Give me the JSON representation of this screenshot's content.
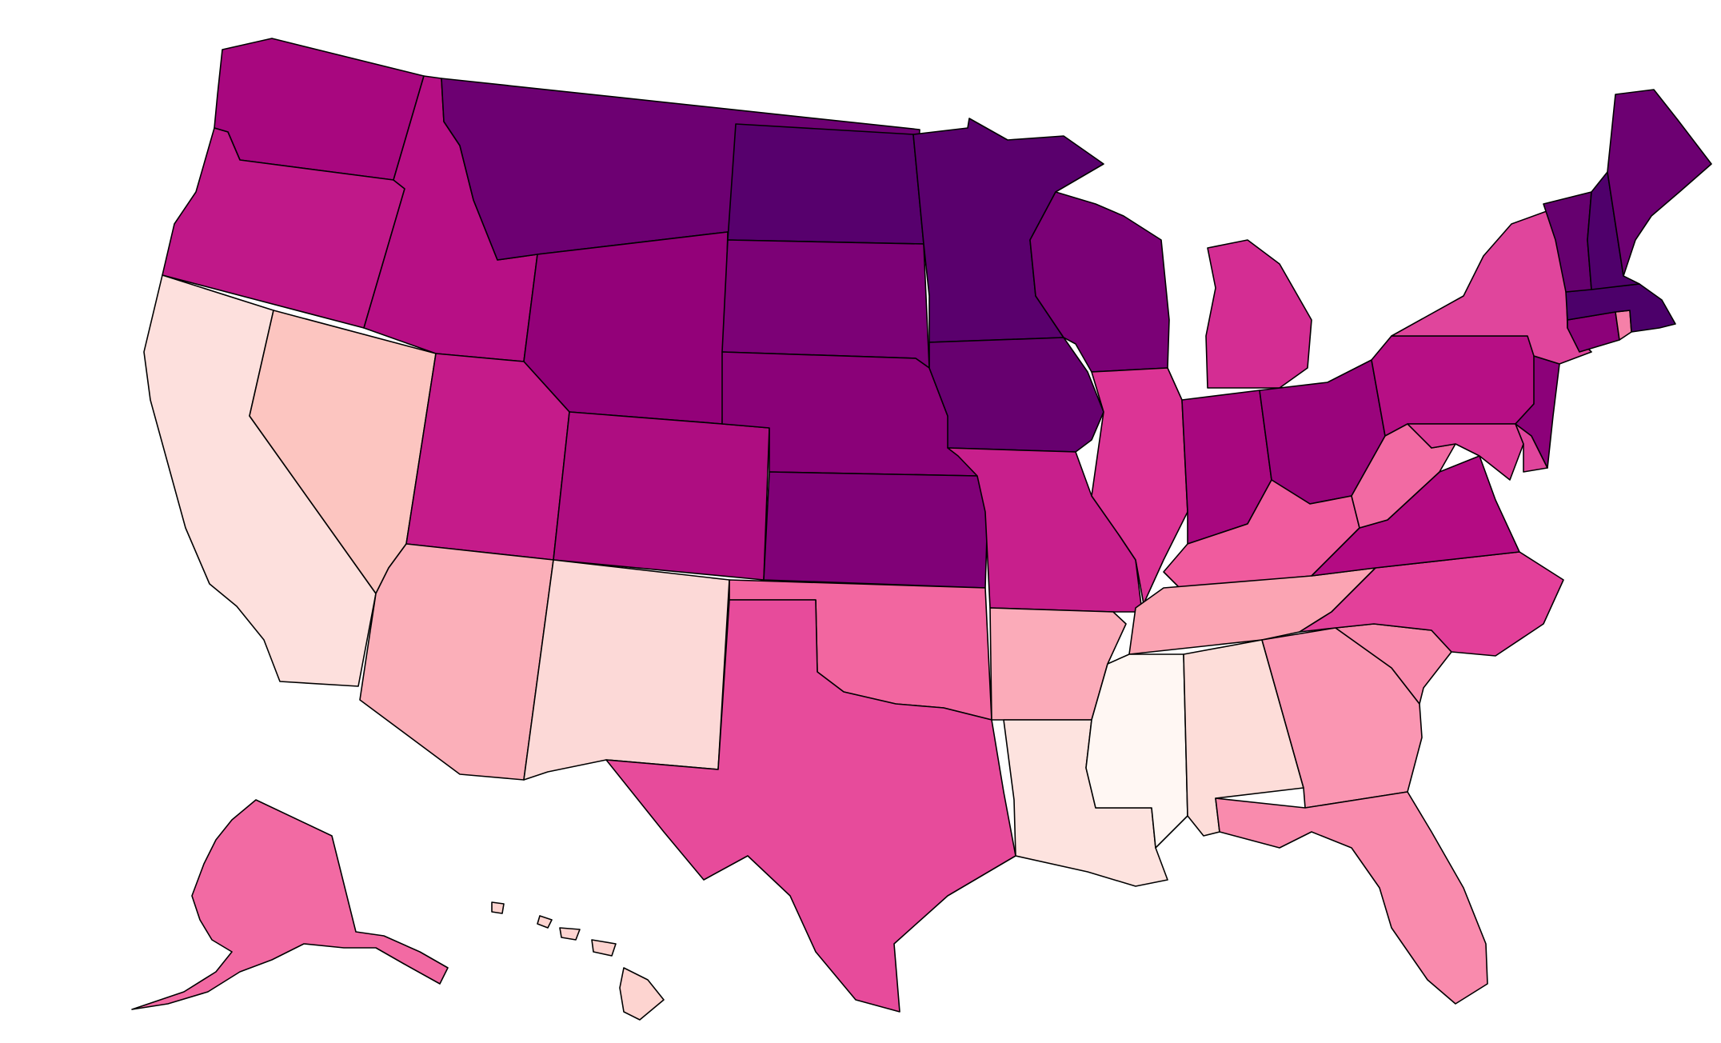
{
  "map": {
    "type": "choropleth",
    "region": "United States",
    "title": "",
    "legend": null,
    "color_scale": [
      "#fff7f3",
      "#fde0dd",
      "#fcc5c0",
      "#fa9fb5",
      "#f768a1",
      "#dd3497",
      "#ae017e",
      "#7a0177",
      "#49006a"
    ],
    "states": [
      {
        "code": "WA",
        "fill": "#a8077f"
      },
      {
        "code": "OR",
        "fill": "#c01889"
      },
      {
        "code": "CA",
        "fill": "#fde0dd"
      },
      {
        "code": "NV",
        "fill": "#fcc5c0"
      },
      {
        "code": "ID",
        "fill": "#b70f85"
      },
      {
        "code": "MT",
        "fill": "#6d0072"
      },
      {
        "code": "WY",
        "fill": "#930179"
      },
      {
        "code": "UT",
        "fill": "#c51b8a"
      },
      {
        "code": "AZ",
        "fill": "#fbafb9"
      },
      {
        "code": "CO",
        "fill": "#ae0d81"
      },
      {
        "code": "NM",
        "fill": "#fcd9d7"
      },
      {
        "code": "ND",
        "fill": "#57006d"
      },
      {
        "code": "SD",
        "fill": "#7c0176"
      },
      {
        "code": "NE",
        "fill": "#8a0178"
      },
      {
        "code": "KS",
        "fill": "#800177"
      },
      {
        "code": "OK",
        "fill": "#f266a0"
      },
      {
        "code": "TX",
        "fill": "#e74b9b"
      },
      {
        "code": "MN",
        "fill": "#5a006d"
      },
      {
        "code": "IA",
        "fill": "#67006f"
      },
      {
        "code": "MO",
        "fill": "#c81f8c"
      },
      {
        "code": "AR",
        "fill": "#fbabb9"
      },
      {
        "code": "LA",
        "fill": "#fde3df"
      },
      {
        "code": "WI",
        "fill": "#7b0176"
      },
      {
        "code": "IL",
        "fill": "#dc3495"
      },
      {
        "code": "MI",
        "fill": "#d42d93"
      },
      {
        "code": "IN",
        "fill": "#a8077f"
      },
      {
        "code": "OH",
        "fill": "#9a047c"
      },
      {
        "code": "KY",
        "fill": "#f05b9e"
      },
      {
        "code": "TN",
        "fill": "#fba4b3"
      },
      {
        "code": "MS",
        "fill": "#fff7f3"
      },
      {
        "code": "AL",
        "fill": "#fdddd9"
      },
      {
        "code": "GA",
        "fill": "#fa96b2"
      },
      {
        "code": "FL",
        "fill": "#f98bad"
      },
      {
        "code": "SC",
        "fill": "#f98bad"
      },
      {
        "code": "NC",
        "fill": "#e3409a"
      },
      {
        "code": "VA",
        "fill": "#b40b83"
      },
      {
        "code": "WV",
        "fill": "#f26aa3"
      },
      {
        "code": "PA",
        "fill": "#b70f85"
      },
      {
        "code": "NY",
        "fill": "#e0459c"
      },
      {
        "code": "MD",
        "fill": "#de3c98"
      },
      {
        "code": "DE",
        "fill": "#e0459c"
      },
      {
        "code": "NJ",
        "fill": "#8c0179"
      },
      {
        "code": "CT",
        "fill": "#8c0179"
      },
      {
        "code": "RI",
        "fill": "#f580a8"
      },
      {
        "code": "MA",
        "fill": "#4c006a"
      },
      {
        "code": "VT",
        "fill": "#66006f"
      },
      {
        "code": "NH",
        "fill": "#4f006b"
      },
      {
        "code": "ME",
        "fill": "#6d0072"
      },
      {
        "code": "AK",
        "fill": "#f26aa3"
      },
      {
        "code": "HI",
        "fill": "#fdd4d0"
      }
    ]
  }
}
